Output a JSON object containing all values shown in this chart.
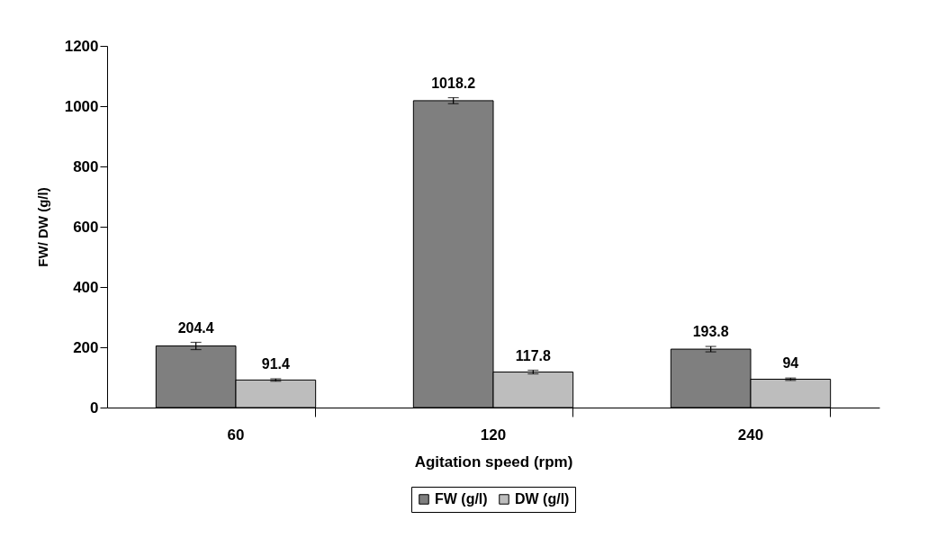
{
  "chart_data": {
    "type": "bar",
    "xlabel": "Agitation speed (rpm)",
    "ylabel": "FW/ DW (g/l)",
    "categories": [
      "60",
      "120",
      "240"
    ],
    "series": [
      {
        "name": "FW (g/l)",
        "color": "#7f7f7f",
        "values": [
          204.4,
          1018.2,
          193.8
        ],
        "errors": [
          12,
          10,
          9
        ]
      },
      {
        "name": "DW (g/l)",
        "color": "#bdbdbd",
        "values": [
          91.4,
          117.8,
          94
        ],
        "errors": [
          4,
          6,
          4
        ]
      }
    ],
    "ylim": [
      0,
      1200
    ],
    "yticks": [
      0,
      200,
      400,
      600,
      800,
      1000,
      1200
    ],
    "grid": false,
    "legend": "bottom",
    "data_labels": true
  }
}
